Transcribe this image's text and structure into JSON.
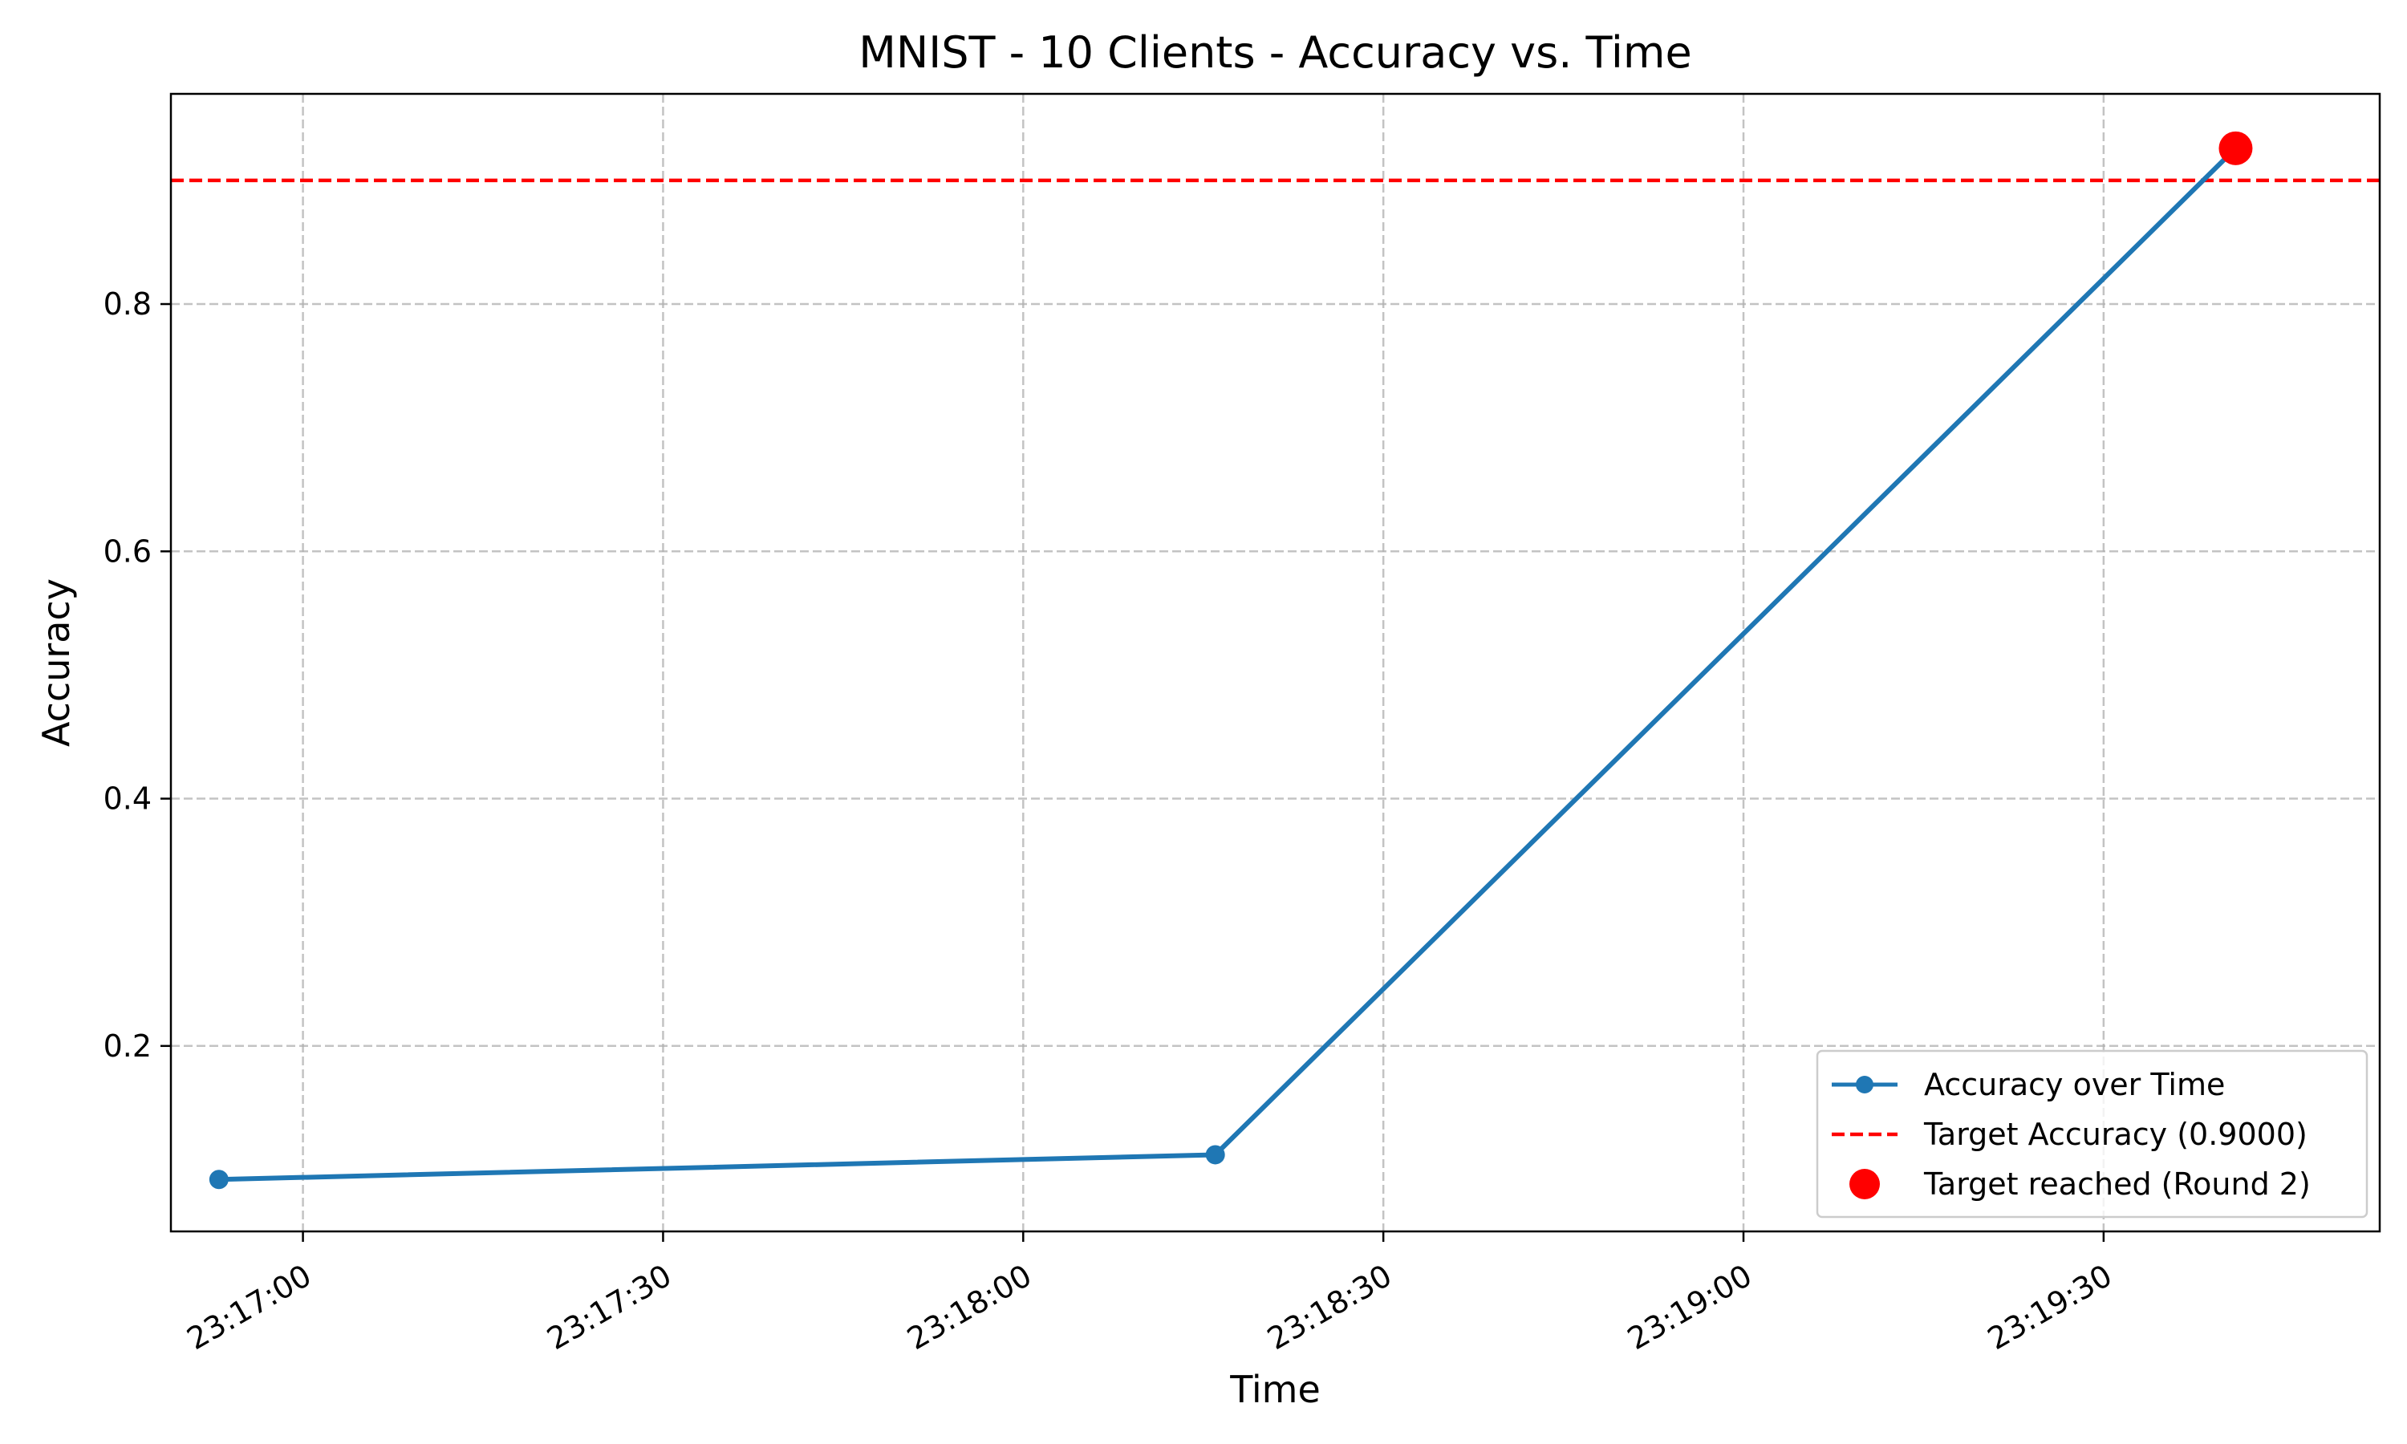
{
  "chart_data": {
    "type": "line",
    "title": "MNIST - 10 Clients - Accuracy vs. Time",
    "xlabel": "Time",
    "ylabel": "Accuracy",
    "x_ticks": [
      "23:17:00",
      "23:17:30",
      "23:18:00",
      "23:18:30",
      "23:19:00",
      "23:19:30"
    ],
    "y_ticks": [
      "0.2",
      "0.4",
      "0.6",
      "0.8"
    ],
    "xlim": [
      "23:16:49",
      "23:19:53"
    ],
    "ylim": [
      0.05,
      0.97
    ],
    "grid": true,
    "legend_position": "bottom-right",
    "series": [
      {
        "name": "Accuracy over Time",
        "color": "#1f77b4",
        "x": [
          "23:16:53",
          "23:18:16",
          "23:19:41"
        ],
        "y": [
          0.092,
          0.112,
          0.926
        ]
      }
    ],
    "target_line": {
      "label": "Target Accuracy (0.9000)",
      "value": 0.9,
      "color": "#ff0000"
    },
    "target_marker": {
      "label": "Target reached (Round 2)",
      "x": "23:19:41",
      "y": 0.926,
      "color": "#ff0000"
    }
  }
}
